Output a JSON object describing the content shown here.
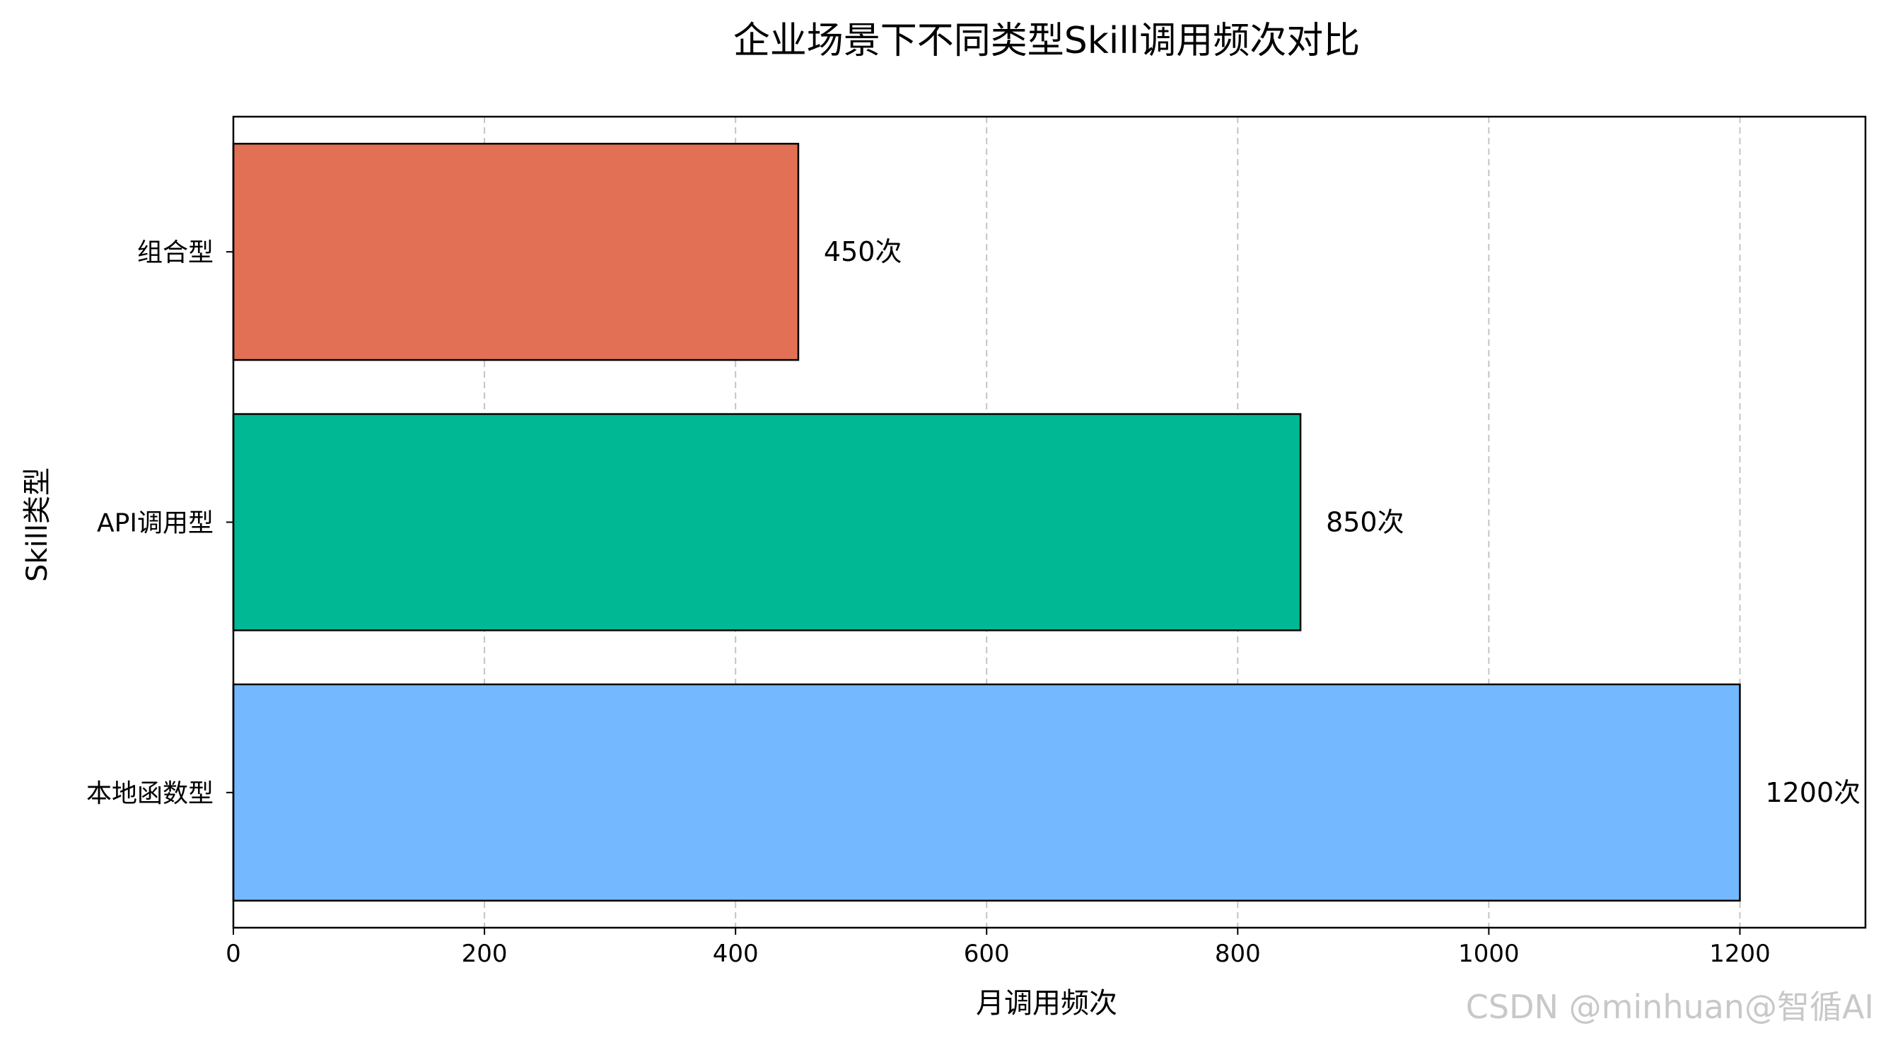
{
  "chart_data": {
    "type": "bar",
    "orientation": "horizontal",
    "title": "企业场景下不同类型Skill调用频次对比",
    "xlabel": "月调用频次",
    "ylabel": "Skill类型",
    "categories": [
      "本地函数型",
      "API调用型",
      "组合型"
    ],
    "values": [
      1200,
      850,
      450
    ],
    "data_labels": [
      "1200次",
      "850次",
      "450次"
    ],
    "colors": [
      "#74b9ff",
      "#00b894",
      "#e17055"
    ],
    "xlim": [
      0,
      1300
    ],
    "xticks": [
      0,
      200,
      400,
      600,
      800,
      1000,
      1200
    ],
    "grid": "x-dashed"
  },
  "watermark": "CSDN @minhuan@智循AI"
}
